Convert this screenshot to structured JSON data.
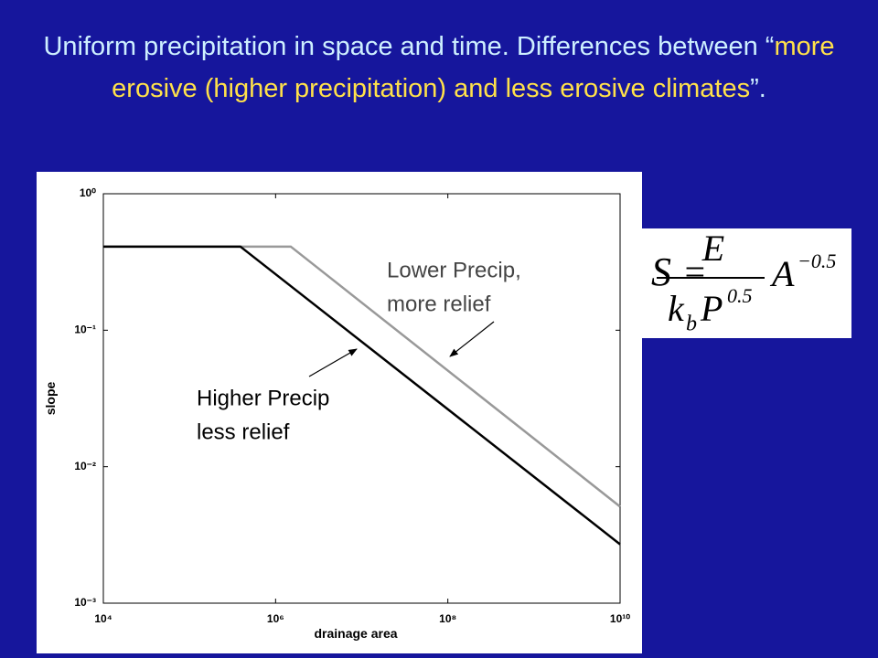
{
  "title_parts": [
    "Uniform precipitation in space and time.  Differences between “",
    "more erosive (higher precipitation) and less erosive climates",
    "”."
  ],
  "chart_data": {
    "type": "line",
    "xlabel": "drainage area",
    "ylabel": "slope",
    "log_x": true,
    "log_y": true,
    "xlim": [
      10000,
      10000000000
    ],
    "ylim": [
      0.001,
      1
    ],
    "xticks": [
      {
        "value": 10000,
        "label": "10⁴"
      },
      {
        "value": 1000000,
        "label": "10⁶"
      },
      {
        "value": 100000000,
        "label": "10⁸"
      },
      {
        "value": 10000000000,
        "label": "10¹⁰"
      }
    ],
    "yticks": [
      {
        "value": 0.001,
        "label": "10⁻³"
      },
      {
        "value": 0.01,
        "label": "10⁻²"
      },
      {
        "value": 0.1,
        "label": "10⁻¹"
      },
      {
        "value": 1,
        "label": "10⁰"
      }
    ],
    "grid": false,
    "series": [
      {
        "color": "#999999",
        "x": [
          10000,
          1500000,
          10000000000
        ],
        "values": [
          0.41,
          0.41,
          0.0051
        ]
      },
      {
        "color": "#000000",
        "x": [
          10000,
          390000,
          10000000000
        ],
        "values": [
          0.41,
          0.41,
          0.0027
        ]
      }
    ],
    "annotations": [
      [
        "Lower Precip,",
        "more relief"
      ],
      [
        "Higher Precip",
        "less relief"
      ]
    ]
  },
  "equation": {
    "lhs": "S",
    "equals": "=",
    "numerator": "E",
    "k": "k",
    "k_sub": "b",
    "p": "P",
    "p_exp": "0.5",
    "a": "A",
    "a_exp": "−0.5"
  }
}
